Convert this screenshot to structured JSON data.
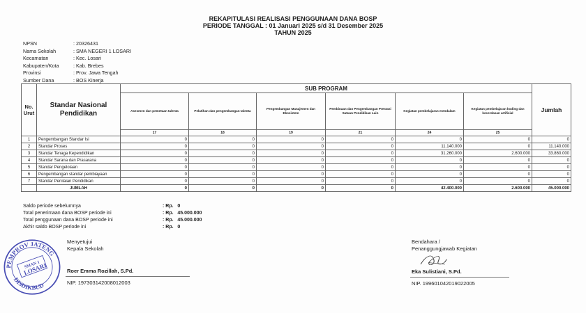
{
  "header": {
    "title": "REKAPITULASI REALISASI PENGGUNAAN DANA BOSP",
    "period": "PERIODE TANGGAL : 01 Januari 2025 s/d 31 Desember 2025",
    "year": "TAHUN 2025"
  },
  "info": [
    {
      "label": "NPSN",
      "value": ": 20326431"
    },
    {
      "label": "Nama Sekolah",
      "value": ": SMA NEGERI 1 LOSARI"
    },
    {
      "label": "Kecamatan",
      "value": ": Kec. Losari"
    },
    {
      "label": "Kabupaten/Kota",
      "value": ": Kab. Brebes"
    },
    {
      "label": "Provinsi",
      "value": ": Prov. Jawa Tengah"
    },
    {
      "label": "Sumber Dana",
      "value": ": BOS Kinerja"
    }
  ],
  "table": {
    "no_header": "No. Urut",
    "standar_header": "Standar Nasional Pendidikan",
    "sub_program": "SUB PROGRAM",
    "jumlah_header": "Jumlah",
    "columns": [
      {
        "name": "Asesmen dan pemetaan talenta",
        "code": "17"
      },
      {
        "name": "Pelatihan dan pengembangan talenta",
        "code": "18"
      },
      {
        "name": "Pengembangan Manajemen dan Ekosistem",
        "code": "19"
      },
      {
        "name": "Pembinaan dan Pengembangan Prestasi Satuan Pendidikan Lain",
        "code": "21"
      },
      {
        "name": "Kegiatan pembelajaran mendalam",
        "code": "24"
      },
      {
        "name": "Kegiatan pembelajaran koding dan kecerdasan artifisial",
        "code": "25"
      }
    ],
    "rows": [
      {
        "no": "1",
        "name": "Pengembangan Standar Isi",
        "values": [
          "0",
          "0",
          "0",
          "0",
          "0",
          "0"
        ],
        "total": "0"
      },
      {
        "no": "2",
        "name": "Standar Proses",
        "values": [
          "0",
          "0",
          "0",
          "0",
          "11.140.000",
          "0"
        ],
        "total": "11.140.000"
      },
      {
        "no": "3",
        "name": "Standar Tenaga Kependidikan",
        "values": [
          "0",
          "0",
          "0",
          "0",
          "31.260.000",
          "2.600.000"
        ],
        "total": "33.860.000"
      },
      {
        "no": "4",
        "name": "Standar Sarana dan Prasarana",
        "values": [
          "0",
          "0",
          "0",
          "0",
          "0",
          "0"
        ],
        "total": "0"
      },
      {
        "no": "5",
        "name": "Standar Pengelolaan",
        "values": [
          "0",
          "0",
          "0",
          "0",
          "0",
          "0"
        ],
        "total": "0"
      },
      {
        "no": "6",
        "name": "Pengembangan standar pembiayaan",
        "values": [
          "0",
          "0",
          "0",
          "0",
          "0",
          "0"
        ],
        "total": "0"
      },
      {
        "no": "7",
        "name": "Standar Penilaian Pendidikan",
        "values": [
          "0",
          "0",
          "0",
          "0",
          "0",
          "0"
        ],
        "total": "0"
      }
    ],
    "jumlah_row": {
      "label": "JUMLAH",
      "values": [
        "0",
        "0",
        "0",
        "0",
        "42.400.000",
        "2.600.000"
      ],
      "total": "45.000.000"
    }
  },
  "summary": [
    {
      "label": "Saldo periode sebelumnya",
      "value": ": Rp.   0"
    },
    {
      "label": "Total penerimaan dana BOSP periode ini",
      "value": ": Rp.   45.000.000"
    },
    {
      "label": "Total penggunaan dana BOSP periode ini",
      "value": ": Rp.   45.000.000"
    },
    {
      "label": "Akhir saldo BOSP periode ini",
      "value": ": Rp.   0"
    }
  ],
  "signatures": {
    "left": {
      "line1": "Menyetujui",
      "line2": "Kepala Sekolah",
      "name": "Roer Emma Rozillah, S.Pd.",
      "nip": "NIP. 197303142008012003"
    },
    "right": {
      "line1": "Bendahara /",
      "line2": "Penanggungjawab Kegiatan",
      "name": "Eka Sulistiani, S.Pd.",
      "nip": "NIP. 199601042019022005"
    },
    "stamp": {
      "top": "PEMPROV JATENG",
      "center1": "SMAN 1",
      "center2": "LOSARI",
      "bottom": "DISDIKBUD",
      "color": "#4a4fb5"
    }
  }
}
